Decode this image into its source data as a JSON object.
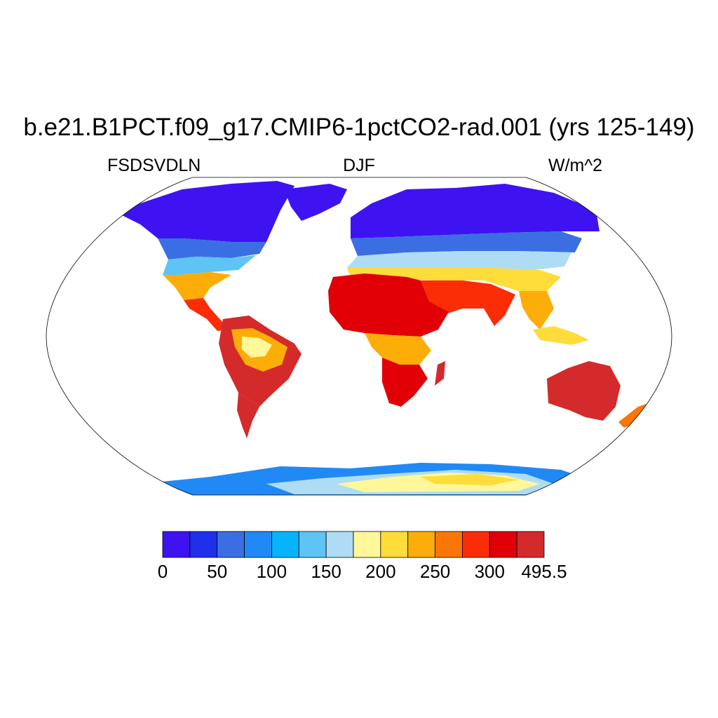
{
  "title": "b.e21.B1PCT.f09_g17.CMIP6-1pctCO2-rad.001 (yrs 125-149)",
  "left_label": "FSDSVDLN",
  "center_label": "DJF",
  "right_label": "W/m^2",
  "colorbar": {
    "colors": [
      "#3f12f2",
      "#1e30ec",
      "#3b6ee3",
      "#2189f5",
      "#05b4fa",
      "#5ec4f5",
      "#aedcf4",
      "#fff79a",
      "#fedc3a",
      "#fdad07",
      "#fb7607",
      "#fb2d06",
      "#e10005",
      "#d42a2b"
    ],
    "tick_labels": [
      "0",
      "50",
      "100",
      "150",
      "200",
      "250",
      "300",
      "495.5"
    ]
  },
  "map_regions": [
    {
      "region": "Arctic / high northern latitudes",
      "color": "#3f12f2"
    },
    {
      "region": "North Africa & Arabia",
      "color": "#e10005"
    },
    {
      "region": "Australia",
      "color": "#d42a2b"
    },
    {
      "region": "Southern South America",
      "color": "#d42a2b"
    },
    {
      "region": "Amazon basin",
      "color": "#fdad07"
    },
    {
      "region": "East Antarctica interior",
      "color": "#fff79a"
    },
    {
      "region": "Antarctic coast",
      "color": "#05b4fa"
    }
  ]
}
